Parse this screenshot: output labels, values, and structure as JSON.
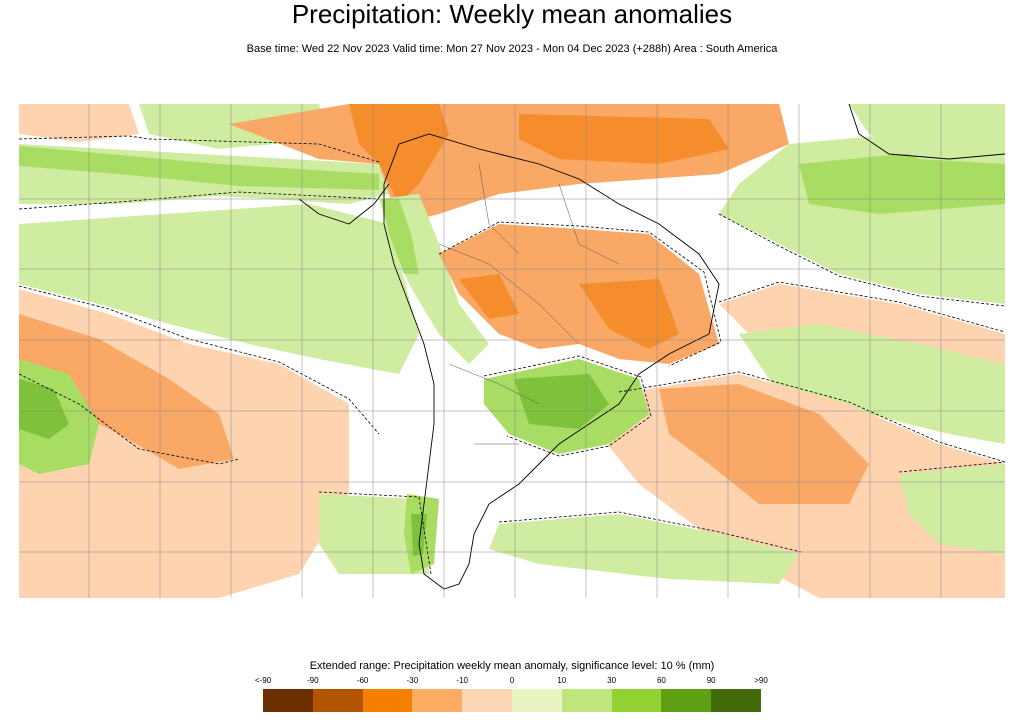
{
  "title": "Precipitation: Weekly mean anomalies",
  "subtitle": "Base time: Wed 22 Nov 2023 Valid time: Mon 27 Nov 2023 - Mon 04 Dec 2023 (+288h) Area : South America",
  "legend": {
    "title": "Extended range: Precipitation weekly mean anomaly, significance level: 10 % (mm)",
    "ticks": [
      "<-90",
      "-90",
      "-60",
      "-30",
      "-10",
      "0",
      "10",
      "30",
      "60",
      "90",
      ">90"
    ],
    "colors": [
      "#6b2f00",
      "#b35500",
      "#f77f00",
      "#fbac62",
      "#fdd7b5",
      "#e8f5c2",
      "#bfe67d",
      "#93d032",
      "#5f9f13",
      "#426b0a"
    ]
  },
  "map": {
    "area": "South America",
    "region_colors": {
      "ocean_dry": "#fdd3b0",
      "dry": "#f9a866",
      "very_dry": "#f58d2c",
      "wet": "#cfeca1",
      "wetter": "#a8dc63",
      "very_wet": "#7ec13b",
      "neutral": "#ffffff"
    }
  }
}
